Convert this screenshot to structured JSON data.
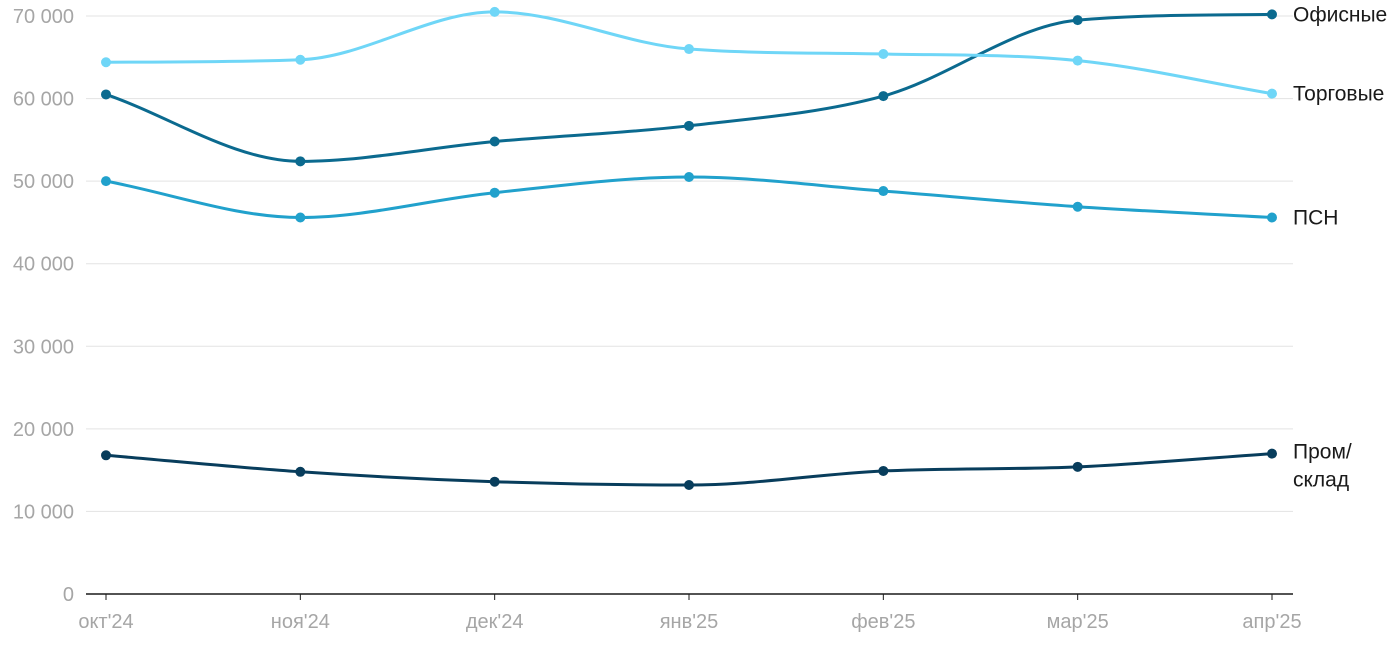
{
  "chart_data": {
    "type": "line",
    "x": [
      "окт'24",
      "ноя'24",
      "дек'24",
      "янв'25",
      "фев'25",
      "мар'25",
      "апр'25"
    ],
    "ylim": [
      0,
      70000
    ],
    "yticks": [
      0,
      10000,
      20000,
      30000,
      40000,
      50000,
      60000,
      70000
    ],
    "ytick_labels": [
      "0",
      "10 000",
      "20 000",
      "30 000",
      "40 000",
      "50 000",
      "60 000",
      "70 000"
    ],
    "grid": true,
    "series": [
      {
        "name": "Офисные",
        "label_lines": [
          "Офисные"
        ],
        "color": "#0b6a8f",
        "values": [
          60500,
          52400,
          54800,
          56700,
          60300,
          69500,
          70200
        ]
      },
      {
        "name": "Торговые",
        "label_lines": [
          "Торговые"
        ],
        "color": "#6fd6f7",
        "values": [
          64400,
          64700,
          70500,
          66000,
          65400,
          64600,
          60600
        ]
      },
      {
        "name": "ПСН",
        "label_lines": [
          "ПСН"
        ],
        "color": "#21a1cc",
        "values": [
          50000,
          45600,
          48600,
          50500,
          48800,
          46900,
          45600
        ]
      },
      {
        "name": "Пром/склад",
        "label_lines": [
          "Пром/",
          "склад"
        ],
        "color": "#083d5c",
        "values": [
          16800,
          14800,
          13600,
          13200,
          14900,
          15400,
          17000
        ]
      }
    ]
  }
}
